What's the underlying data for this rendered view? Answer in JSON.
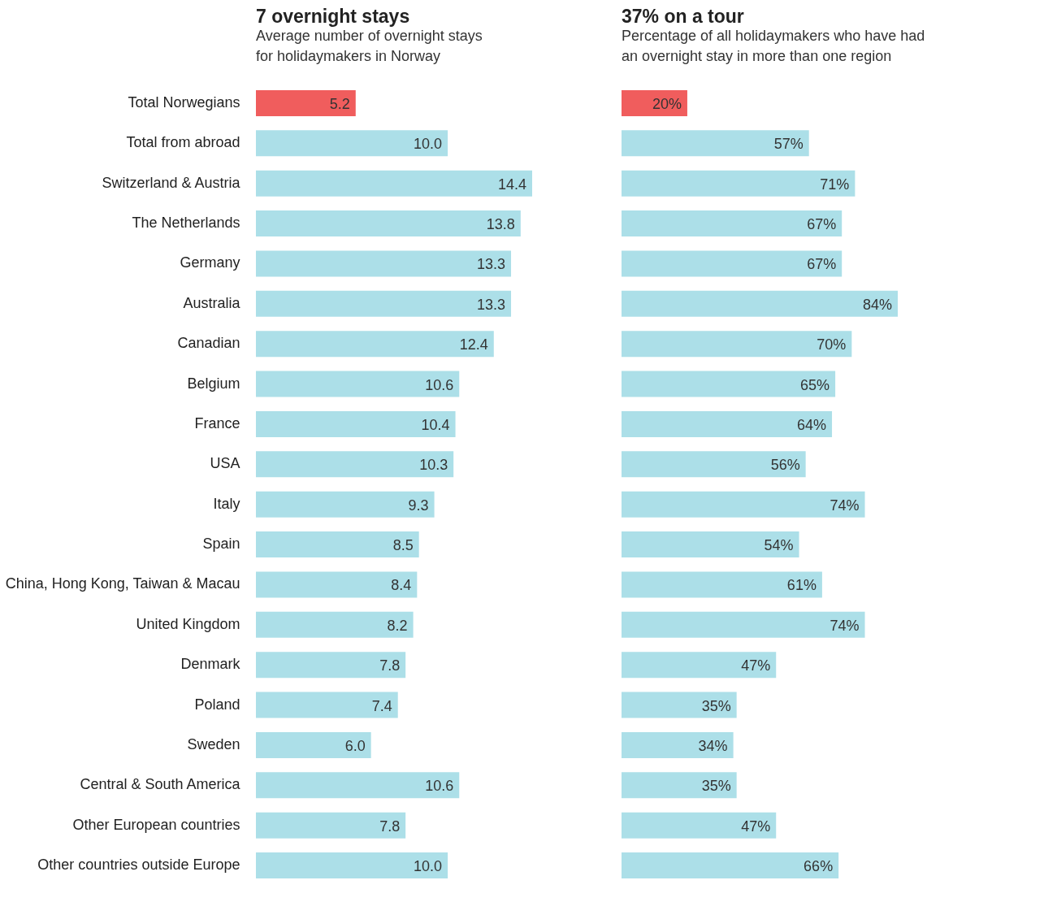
{
  "chart_data": [
    {
      "type": "bar",
      "orientation": "horizontal",
      "title": "7 overnight stays",
      "subtitle": "Average number of overnight stays\nfor holidaymakers in Norway",
      "tick_labels": "y",
      "categories": [
        "Total Norwegians",
        "Total from abroad",
        "Switzerland & Austria",
        "The Netherlands",
        "Germany",
        "Australia",
        "Canadian",
        "Belgium",
        "France",
        "USA",
        "Italy",
        "Spain",
        "China, Hong Kong, Taiwan & Macau",
        "United Kingdom",
        "Denmark",
        "Poland",
        "Sweden",
        "Central & South America",
        "Other European countries",
        "Other countries outside Europe"
      ],
      "values": [
        5.2,
        10.0,
        14.4,
        13.8,
        13.3,
        13.3,
        12.4,
        10.6,
        10.4,
        10.3,
        9.3,
        8.5,
        8.4,
        8.2,
        7.8,
        7.4,
        6.0,
        10.6,
        7.8,
        10.0
      ],
      "value_labels": [
        "5.2",
        "10.0",
        "14.4",
        "13.8",
        "13.3",
        "13.3",
        "12.4",
        "10.6",
        "10.4",
        "10.3",
        "9.3",
        "8.5",
        "8.4",
        "8.2",
        "7.8",
        "7.4",
        "6.0",
        "10.6",
        "7.8",
        "10.0"
      ],
      "colors": [
        "#f05d5d",
        "#acdfe8",
        "#acdfe8",
        "#acdfe8",
        "#acdfe8",
        "#acdfe8",
        "#acdfe8",
        "#acdfe8",
        "#acdfe8",
        "#acdfe8",
        "#acdfe8",
        "#acdfe8",
        "#acdfe8",
        "#acdfe8",
        "#acdfe8",
        "#acdfe8",
        "#acdfe8",
        "#acdfe8",
        "#acdfe8",
        "#acdfe8"
      ]
    },
    {
      "type": "bar",
      "orientation": "horizontal",
      "title": "37% on a tour",
      "subtitle": "Percentage of all holidaymakers who have had\nan overnight stay in more than one region",
      "tick_labels": false,
      "categories": [
        null,
        null,
        null,
        null,
        null,
        null,
        null,
        null,
        null,
        null,
        null,
        null,
        null,
        null,
        null,
        null,
        null,
        null,
        null,
        null
      ],
      "values": [
        20,
        57,
        71,
        67,
        67,
        84,
        70,
        65,
        64,
        56,
        74,
        54,
        61,
        74,
        47,
        35,
        34,
        35,
        47,
        66
      ],
      "value_labels": [
        "20%",
        "57%",
        "71%",
        "67%",
        "67%",
        "84%",
        "70%",
        "65%",
        "64%",
        "56%",
        "74%",
        "54%",
        "61%",
        "74%",
        "47%",
        "35%",
        "34%",
        "35%",
        "47%",
        "66%"
      ],
      "colors": [
        "#f05d5d",
        "#acdfe8",
        "#acdfe8",
        "#acdfe8",
        "#acdfe8",
        "#acdfe8",
        "#acdfe8",
        "#acdfe8",
        "#acdfe8",
        "#acdfe8",
        "#acdfe8",
        "#acdfe8",
        "#acdfe8",
        "#acdfe8",
        "#acdfe8",
        "#acdfe8",
        "#acdfe8",
        "#acdfe8",
        "#acdfe8",
        "#acdfe8"
      ]
    }
  ]
}
